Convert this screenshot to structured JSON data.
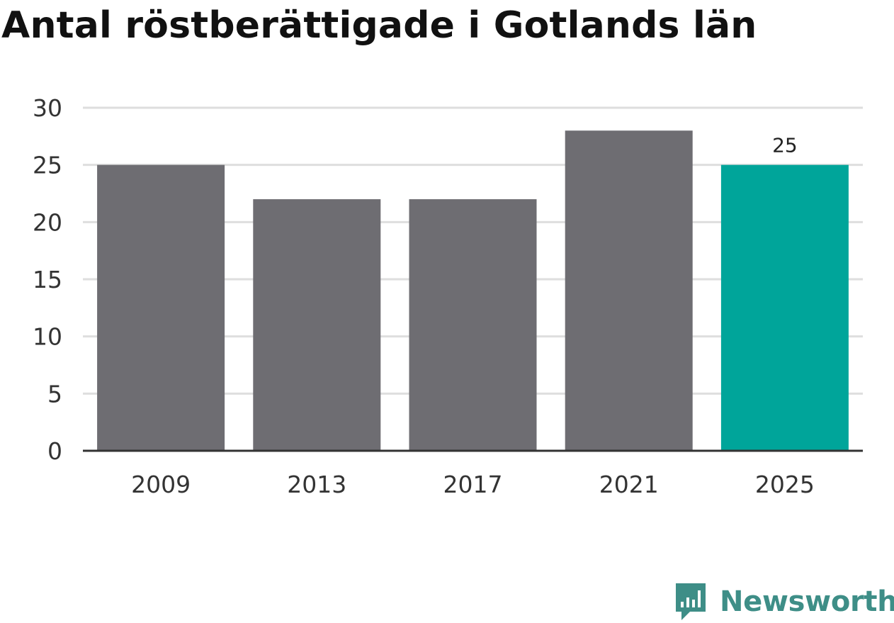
{
  "colors": {
    "default_bar": "#6e6d72",
    "highlight_bar": "#00a59a",
    "gridline": "#dedede",
    "axis": "#333333",
    "brand": "#3e8e87"
  },
  "brand": {
    "name": "Newsworthy",
    "icon": "bar-chart-speech-bubble-icon"
  },
  "chart_data": {
    "type": "bar",
    "title": "Antal röstberättigade i Gotlands län",
    "categories": [
      "2009",
      "2013",
      "2017",
      "2021",
      "2025"
    ],
    "values": [
      25,
      22,
      22,
      28,
      25
    ],
    "highlight_index": 4,
    "data_labels": [
      {
        "index": 4,
        "text": "25"
      }
    ],
    "xlabel": "",
    "ylabel": "",
    "ylim": [
      0,
      30
    ],
    "yticks": [
      0,
      5,
      10,
      15,
      20,
      25,
      30
    ],
    "grid": true,
    "legend": "none"
  }
}
